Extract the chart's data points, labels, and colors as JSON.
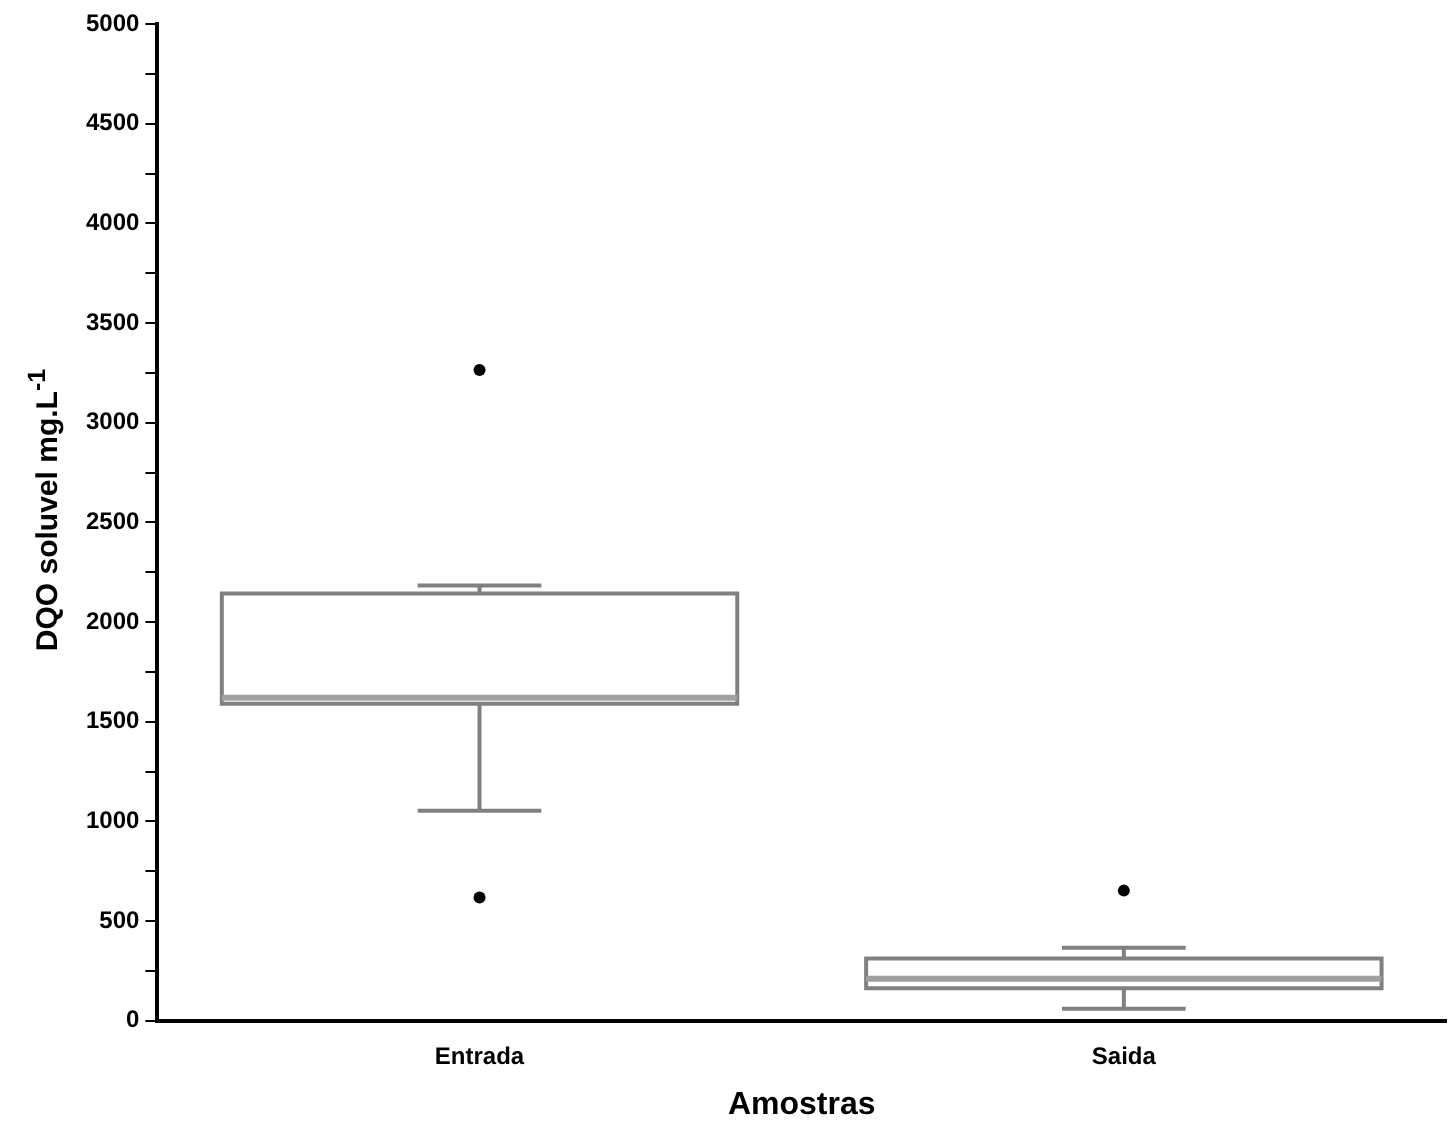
{
  "chart_data": {
    "type": "box",
    "xlabel": "Amostras",
    "ylabel": "DQO soluvel mg.L$^{-1}$",
    "categories": [
      "Entrada",
      "Saida"
    ],
    "boxes": [
      {
        "low": 1054,
        "q1": 1590,
        "median": 1620,
        "q3": 2143,
        "high": 2184,
        "outliers": [
          3265,
          619
        ]
      },
      {
        "low": 60,
        "q1": 163,
        "median": 211,
        "q3": 313,
        "high": 367,
        "outliers": [
          653
        ]
      }
    ],
    "color": "#808080",
    "ylim": [
      0,
      5000
    ],
    "yticks": [
      0,
      {
        "value": 250,
        "label": null
      },
      500,
      {
        "value": 750,
        "label": null
      },
      1000,
      {
        "value": 1250,
        "label": null
      },
      1500,
      {
        "value": 1750,
        "label": null
      },
      2000,
      {
        "value": 2250,
        "label": null
      },
      2500,
      {
        "value": 2750,
        "label": null
      },
      3000,
      {
        "value": 3250,
        "label": null
      },
      3500,
      {
        "value": 3750,
        "label": null
      },
      4000,
      {
        "value": 4250,
        "label": null
      },
      4500,
      {
        "value": 4750,
        "label": null
      },
      5000
    ],
    "grid": false,
    "legend": false
  }
}
